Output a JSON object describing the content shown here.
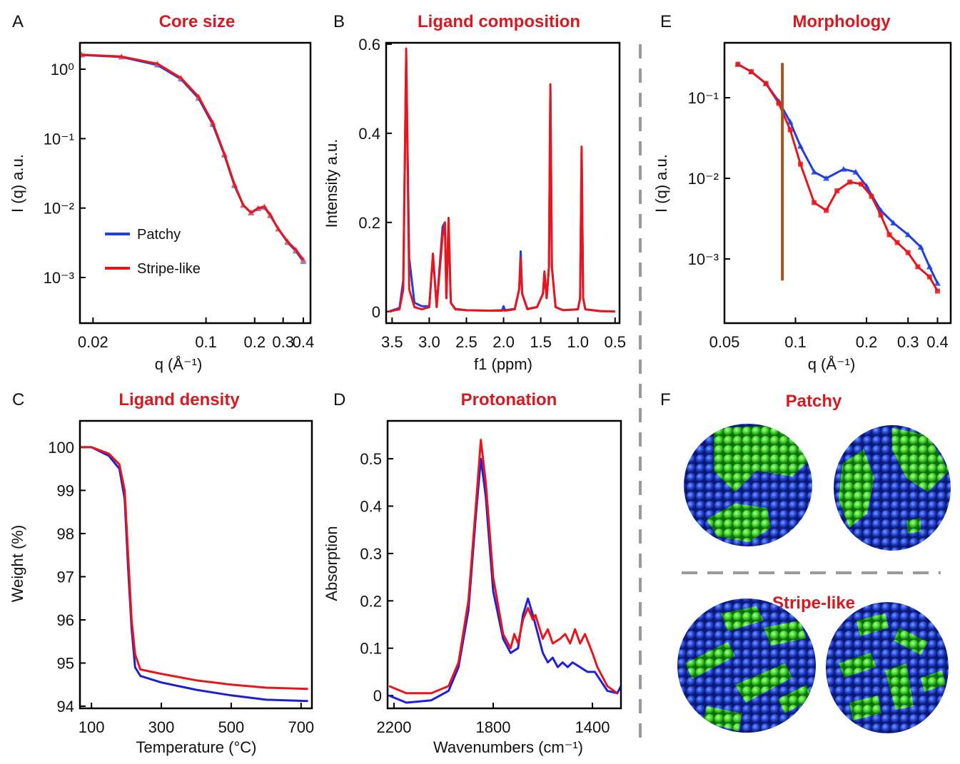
{
  "chart_data": [
    {
      "type": "line",
      "panel": "A",
      "title": "Core size",
      "xlabel": "q (Å⁻¹)",
      "ylabel": "I (q) a.u.",
      "xscale": "log",
      "yscale": "log",
      "xlim": [
        0.0166,
        0.443
      ],
      "ylim": [
        0.00022,
        2.4
      ],
      "xticks": [
        0.02,
        0.1,
        0.2,
        0.3,
        0.4
      ],
      "yticks": [
        {
          "value": 1,
          "label": "10⁰"
        },
        {
          "value": 0.1,
          "label": "10⁻¹"
        },
        {
          "value": 0.01,
          "label": "10⁻²"
        },
        {
          "value": 0.001,
          "label": "10⁻³"
        }
      ],
      "legend": "lower left",
      "series": [
        {
          "name": "Patchy",
          "color": "#1f3fe0",
          "marker": "triangle",
          "marker_color": "#4a7de8",
          "x": [
            0.017,
            0.03,
            0.05,
            0.07,
            0.09,
            0.11,
            0.13,
            0.15,
            0.17,
            0.19,
            0.21,
            0.23,
            0.25,
            0.28,
            0.32,
            0.36,
            0.4
          ],
          "values": [
            1.6,
            1.5,
            1.15,
            0.72,
            0.38,
            0.16,
            0.058,
            0.021,
            0.011,
            0.0085,
            0.0098,
            0.0102,
            0.0078,
            0.005,
            0.0032,
            0.0024,
            0.0017
          ]
        },
        {
          "name": "Stripe-like",
          "color": "#e8161b",
          "marker": "triangle",
          "marker_color": "#f45a5a",
          "x": [
            0.017,
            0.03,
            0.05,
            0.07,
            0.09,
            0.11,
            0.13,
            0.15,
            0.17,
            0.19,
            0.21,
            0.23,
            0.25,
            0.28,
            0.32,
            0.36,
            0.4
          ],
          "values": [
            1.62,
            1.52,
            1.2,
            0.75,
            0.4,
            0.17,
            0.06,
            0.022,
            0.011,
            0.0086,
            0.01,
            0.0105,
            0.008,
            0.005,
            0.0033,
            0.0025,
            0.0018
          ]
        }
      ]
    },
    {
      "type": "line",
      "panel": "B",
      "title": "Ligand composition",
      "xlabel": "f1 (ppm)",
      "ylabel": "Intensity  a.u.",
      "xlim": [
        3.58,
        0.44
      ],
      "ylim": [
        -0.026,
        0.603
      ],
      "xticks": [
        3.5,
        {
          "value": 3,
          "label": "3.0"
        },
        2.5,
        {
          "value": 2,
          "label": "2.0"
        },
        1.5,
        {
          "value": 1,
          "label": "1.0"
        },
        0.5
      ],
      "yticks": [
        0,
        0.2,
        0.4,
        0.6
      ],
      "x": [
        3.55,
        3.4,
        3.35,
        3.31,
        3.27,
        3.2,
        3.1,
        3.0,
        2.95,
        2.9,
        2.82,
        2.79,
        2.77,
        2.74,
        2.71,
        2.65,
        2.5,
        2.2,
        2.02,
        2.0,
        1.98,
        1.85,
        1.79,
        1.77,
        1.75,
        1.68,
        1.55,
        1.47,
        1.45,
        1.42,
        1.39,
        1.37,
        1.35,
        1.3,
        1.2,
        1.0,
        0.97,
        0.95,
        0.93,
        0.9,
        0.7,
        0.5
      ],
      "series": [
        {
          "color": "#1f3fe0",
          "values": [
            0,
            0.008,
            0.07,
            0.57,
            0.12,
            0.02,
            0.012,
            0.012,
            0.125,
            0.012,
            0.19,
            0.2,
            0.03,
            0.2,
            0.02,
            0.006,
            0.003,
            0.002,
            0.003,
            0.012,
            0.003,
            0.006,
            0.05,
            0.135,
            0.04,
            0.006,
            0.01,
            0.04,
            0.085,
            0.03,
            0.1,
            0.5,
            0.1,
            0.01,
            0.003,
            0.005,
            0.03,
            0.36,
            0.03,
            0.005,
            0.001,
            0
          ]
        },
        {
          "color": "#e8161b",
          "values": [
            0,
            0.005,
            0.05,
            0.59,
            0.05,
            0.01,
            0.005,
            0.01,
            0.13,
            0.01,
            0.17,
            0.2,
            0.03,
            0.21,
            0.02,
            0.005,
            0.003,
            0.002,
            0.002,
            0.003,
            0.002,
            0.005,
            0.05,
            0.12,
            0.04,
            0.005,
            0.01,
            0.04,
            0.09,
            0.03,
            0.1,
            0.51,
            0.1,
            0.01,
            0.003,
            0.005,
            0.03,
            0.37,
            0.03,
            0.005,
            0.001,
            0
          ]
        }
      ]
    },
    {
      "type": "line",
      "panel": "E",
      "title": "Morphology",
      "xlabel": "q (Å⁻¹)",
      "ylabel": "I (q) a.u.",
      "xscale": "log",
      "yscale": "log",
      "xlim": [
        0.05,
        0.455
      ],
      "ylim": [
        0.00016,
        0.48
      ],
      "xticks": [
        0.05,
        0.1,
        0.2,
        0.3,
        0.4
      ],
      "yticks": [
        {
          "value": 0.1,
          "label": "10⁻¹"
        },
        {
          "value": 0.01,
          "label": "10⁻²"
        },
        {
          "value": 0.001,
          "label": "10⁻³"
        }
      ],
      "vline": {
        "x": 0.088,
        "y": [
          0.00054,
          0.27
        ],
        "color": "#a0561e"
      },
      "series": [
        {
          "color": "#1f3fe0",
          "marker": "triangle",
          "marker_color": "#1f3fe0",
          "x": [
            0.057,
            0.065,
            0.075,
            0.085,
            0.095,
            0.105,
            0.12,
            0.135,
            0.16,
            0.18,
            0.2,
            0.23,
            0.26,
            0.3,
            0.34,
            0.37,
            0.4
          ],
          "values": [
            0.26,
            0.21,
            0.15,
            0.09,
            0.05,
            0.025,
            0.012,
            0.01,
            0.013,
            0.012,
            0.008,
            0.004,
            0.0028,
            0.002,
            0.0014,
            0.0008,
            0.0005
          ]
        },
        {
          "color": "#e8161b",
          "marker": "square",
          "marker_color": "#e8161b",
          "x": [
            0.057,
            0.065,
            0.075,
            0.085,
            0.095,
            0.105,
            0.12,
            0.135,
            0.15,
            0.17,
            0.19,
            0.21,
            0.23,
            0.25,
            0.27,
            0.3,
            0.33,
            0.37,
            0.4
          ],
          "values": [
            0.26,
            0.21,
            0.15,
            0.085,
            0.04,
            0.015,
            0.005,
            0.004,
            0.007,
            0.009,
            0.0085,
            0.006,
            0.0035,
            0.002,
            0.0016,
            0.0012,
            0.0008,
            0.0006,
            0.0004
          ]
        }
      ]
    },
    {
      "type": "line",
      "panel": "C",
      "title": "Ligand density",
      "xlabel": "Temperature (°C)",
      "ylabel": "Weight (%)",
      "xlim": [
        67,
        731
      ],
      "ylim": [
        93.95,
        100.61
      ],
      "xticks": [
        100,
        300,
        500,
        700
      ],
      "yticks": [
        94,
        95,
        96,
        97,
        98,
        99,
        100
      ],
      "series": [
        {
          "color": "#1f1fd0",
          "x": [
            70,
            100,
            150,
            180,
            195,
            205,
            215,
            225,
            240,
            300,
            400,
            500,
            600,
            720
          ],
          "values": [
            100.0,
            100.0,
            99.8,
            99.5,
            98.8,
            97.2,
            95.8,
            94.9,
            94.7,
            94.55,
            94.38,
            94.25,
            94.15,
            94.12
          ]
        },
        {
          "color": "#e8161b",
          "x": [
            70,
            100,
            150,
            180,
            195,
            205,
            215,
            225,
            240,
            300,
            400,
            500,
            600,
            720
          ],
          "values": [
            100.0,
            100.0,
            99.85,
            99.6,
            99.0,
            97.5,
            96.0,
            95.2,
            94.85,
            94.75,
            94.6,
            94.5,
            94.43,
            94.4
          ]
        }
      ]
    },
    {
      "type": "line",
      "panel": "D",
      "title": "Protonation",
      "xlabel": "Wavenumbers (cm⁻¹)",
      "ylabel": "Absorption",
      "xlim": [
        2226,
        1285
      ],
      "ylim": [
        -0.027,
        0.58
      ],
      "xticks": [
        2200,
        1800,
        1400
      ],
      "yticks": [
        0,
        0.1,
        0.2,
        0.3,
        0.4,
        0.5
      ],
      "series": [
        {
          "color": "#1f1fe0",
          "x": [
            2220,
            2150,
            2050,
            1980,
            1940,
            1900,
            1870,
            1850,
            1830,
            1800,
            1760,
            1730,
            1700,
            1680,
            1660,
            1640,
            1620,
            1600,
            1580,
            1560,
            1540,
            1520,
            1500,
            1480,
            1450,
            1420,
            1390,
            1340,
            1300,
            1285
          ],
          "values": [
            0.0,
            -0.015,
            -0.01,
            0.01,
            0.06,
            0.18,
            0.38,
            0.5,
            0.42,
            0.22,
            0.12,
            0.09,
            0.1,
            0.17,
            0.205,
            0.17,
            0.13,
            0.09,
            0.07,
            0.08,
            0.06,
            0.07,
            0.06,
            0.07,
            0.06,
            0.05,
            0.05,
            0.01,
            0.005,
            0.02
          ]
        },
        {
          "color": "#e8161b",
          "x": [
            2220,
            2150,
            2050,
            1980,
            1940,
            1900,
            1870,
            1850,
            1830,
            1800,
            1760,
            1730,
            1715,
            1700,
            1680,
            1660,
            1640,
            1630,
            1600,
            1580,
            1560,
            1530,
            1510,
            1490,
            1470,
            1450,
            1430,
            1400,
            1380,
            1340,
            1300
          ],
          "values": [
            0.02,
            0.005,
            0.005,
            0.02,
            0.07,
            0.2,
            0.4,
            0.54,
            0.45,
            0.25,
            0.13,
            0.1,
            0.13,
            0.11,
            0.16,
            0.185,
            0.16,
            0.17,
            0.12,
            0.14,
            0.11,
            0.12,
            0.13,
            0.11,
            0.14,
            0.11,
            0.13,
            0.09,
            0.06,
            0.02,
            0.005
          ]
        }
      ]
    }
  ],
  "figure_f": {
    "panel": "F",
    "labels": [
      "Patchy",
      "Stripe-like"
    ]
  }
}
